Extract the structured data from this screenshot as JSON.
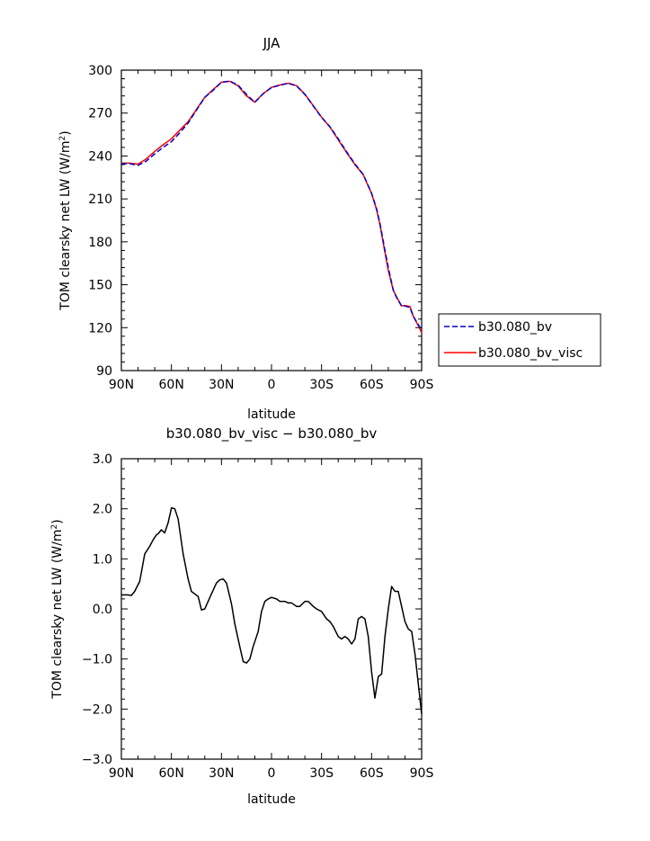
{
  "chart_data": [
    {
      "type": "line",
      "title": "JJA",
      "xlabel": "latitude",
      "ylabel_main": "TOM clearsky net LW (W/m",
      "ylabel_sup": "2",
      "ylabel_end": ")",
      "xlim": [
        90,
        -90
      ],
      "ylim": [
        90,
        300
      ],
      "xticks": [
        90,
        60,
        30,
        0,
        -30,
        -60,
        -90
      ],
      "xtick_labels": [
        "90N",
        "60N",
        "30N",
        "0",
        "30S",
        "60S",
        "90S"
      ],
      "yticks": [
        90,
        120,
        150,
        180,
        210,
        240,
        270,
        300
      ],
      "ytick_labels": [
        "90",
        "120",
        "150",
        "180",
        "210",
        "240",
        "270",
        "300"
      ],
      "legend_position": "right",
      "series": [
        {
          "name": "b30.080_bv",
          "color": "#0000cc",
          "dash": true,
          "x": [
            90,
            85,
            80,
            75,
            70,
            65,
            60,
            55,
            50,
            45,
            40,
            35,
            30,
            25,
            20,
            15,
            10,
            5,
            0,
            -5,
            -10,
            -15,
            -20,
            -25,
            -30,
            -35,
            -40,
            -45,
            -50,
            -55,
            -60,
            -63,
            -65,
            -68,
            -70,
            -73,
            -75,
            -78,
            -80,
            -83,
            -85,
            -88,
            -90
          ],
          "y": [
            234.7,
            234.6,
            233.5,
            236.5,
            241.5,
            246.0,
            250.0,
            256.2,
            263.0,
            272.0,
            281.0,
            286.0,
            291.5,
            292.3,
            289.5,
            283.0,
            277.5,
            283.5,
            287.8,
            289.5,
            290.8,
            289.0,
            283.0,
            275.0,
            267.0,
            260.5,
            252.0,
            243.0,
            234.5,
            227.0,
            214.0,
            203.0,
            193.0,
            174.0,
            162.0,
            146.0,
            141.0,
            135.0,
            135.2,
            134.0,
            128.0,
            122.0,
            118.5
          ]
        },
        {
          "name": "b30.080_bv_visc",
          "color": "#ff0000",
          "dash": false,
          "x": [
            90,
            85,
            80,
            75,
            70,
            65,
            60,
            55,
            50,
            45,
            40,
            35,
            30,
            25,
            20,
            15,
            10,
            5,
            0,
            -5,
            -10,
            -15,
            -20,
            -25,
            -30,
            -35,
            -40,
            -45,
            -50,
            -55,
            -60,
            -63,
            -65,
            -68,
            -70,
            -73,
            -75,
            -78,
            -80,
            -83,
            -85,
            -88,
            -90
          ],
          "y": [
            235.0,
            235.0,
            234.3,
            238.0,
            243.2,
            247.8,
            252.0,
            258.0,
            264.0,
            272.5,
            281.0,
            286.4,
            291.6,
            292.2,
            289.0,
            282.0,
            277.6,
            283.6,
            288.0,
            289.6,
            290.9,
            289.2,
            283.2,
            275.2,
            267.1,
            260.3,
            251.4,
            242.4,
            234.0,
            226.8,
            213.8,
            202.5,
            192.0,
            172.5,
            160.0,
            146.0,
            141.4,
            135.3,
            135.4,
            134.8,
            128.0,
            121.4,
            116.5
          ]
        }
      ]
    },
    {
      "type": "line",
      "title": "b30.080_bv_visc − b30.080_bv",
      "xlabel": "latitude",
      "ylabel_main": "TOM clearsky net LW (W/m",
      "ylabel_sup": "2",
      "ylabel_end": ")",
      "xlim": [
        90,
        -90
      ],
      "ylim": [
        -3,
        3
      ],
      "xticks": [
        90,
        60,
        30,
        0,
        -30,
        -60,
        -90
      ],
      "xtick_labels": [
        "90N",
        "60N",
        "30N",
        "0",
        "30S",
        "60S",
        "90S"
      ],
      "yticks": [
        3,
        2,
        1,
        0,
        -1,
        -2,
        -3
      ],
      "ytick_labels": [
        "3.0",
        "2.0",
        "1.0",
        "0.0",
        "−1.0",
        "−2.0",
        "−3.0"
      ],
      "series": [
        {
          "color": "#000000",
          "dash": false,
          "x": [
            90,
            86,
            84,
            82,
            79,
            76,
            73,
            71,
            69,
            68,
            66,
            64,
            62,
            60,
            58,
            56,
            53,
            50,
            48,
            46,
            44,
            42,
            40,
            38,
            36,
            33,
            31,
            29,
            27,
            24,
            22,
            19,
            17,
            15,
            13,
            11,
            8,
            6,
            4,
            2,
            0,
            -3,
            -5,
            -8,
            -10,
            -12,
            -15,
            -17,
            -20,
            -22,
            -25,
            -27,
            -30,
            -33,
            -35,
            -37,
            -40,
            -42,
            -44,
            -46,
            -48,
            -50,
            -52,
            -54,
            -56,
            -58,
            -60,
            -62,
            -64,
            -66,
            -68,
            -70,
            -72,
            -74,
            -76,
            -78,
            -80,
            -82,
            -84,
            -86,
            -88,
            -90
          ],
          "y": [
            0.28,
            0.28,
            0.27,
            0.35,
            0.55,
            1.1,
            1.25,
            1.38,
            1.48,
            1.5,
            1.58,
            1.52,
            1.72,
            2.02,
            2.0,
            1.8,
            1.1,
            0.6,
            0.35,
            0.3,
            0.25,
            -0.02,
            0.0,
            0.15,
            0.3,
            0.52,
            0.58,
            0.6,
            0.52,
            0.1,
            -0.3,
            -0.75,
            -1.05,
            -1.08,
            -1.0,
            -0.75,
            -0.45,
            -0.05,
            0.15,
            0.2,
            0.23,
            0.2,
            0.15,
            0.15,
            0.12,
            0.12,
            0.05,
            0.05,
            0.15,
            0.15,
            0.05,
            0.0,
            -0.05,
            -0.2,
            -0.25,
            -0.35,
            -0.55,
            -0.6,
            -0.55,
            -0.6,
            -0.7,
            -0.6,
            -0.2,
            -0.15,
            -0.2,
            -0.55,
            -1.25,
            -1.78,
            -1.35,
            -1.3,
            -0.55,
            0.0,
            0.45,
            0.35,
            0.35,
            0.05,
            -0.25,
            -0.4,
            -0.45,
            -0.9,
            -1.5,
            -2.1
          ]
        }
      ]
    }
  ]
}
